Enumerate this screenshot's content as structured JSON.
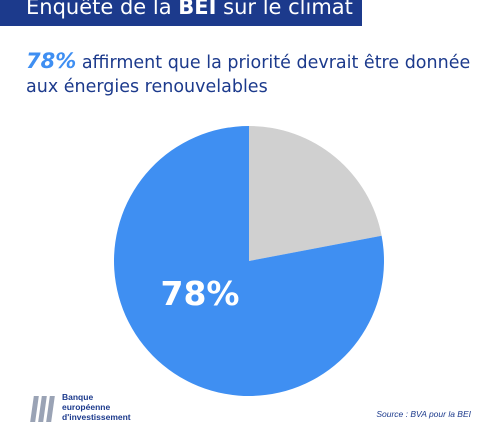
{
  "banner": {
    "prefix": "Enquête de la ",
    "bold": "BEI",
    "suffix": " sur le climat"
  },
  "headline": {
    "pct": "78%",
    "text": " affirment que la priorité devrait être donnée aux énergies renouvelables"
  },
  "chart_data": {
    "type": "pie",
    "slices": [
      {
        "value": 78,
        "label": "78%",
        "color": "#3f8ff2"
      },
      {
        "value": 22,
        "label": "",
        "color": "#d0d0d0"
      }
    ]
  },
  "logo": {
    "line1": "Banque",
    "line2": "européenne",
    "line3": "d'investissement"
  },
  "source": "Source : BVA pour la BEI",
  "colors": {
    "brand": "#1c3a8c",
    "accent": "#3f8ff2",
    "grey": "#d0d0d0"
  }
}
